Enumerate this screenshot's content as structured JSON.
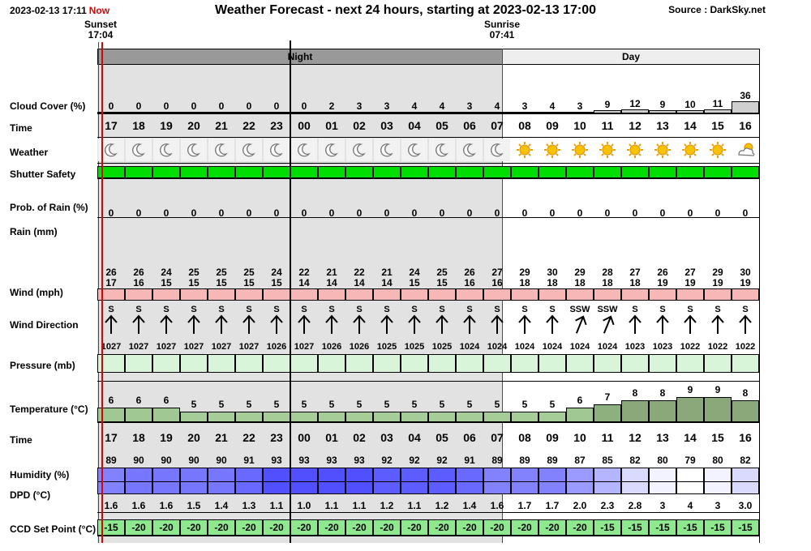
{
  "header": {
    "timestamp": "2023-02-13 17:11",
    "now_label": "Now",
    "title": "Weather Forecast - next 24 hours, starting at 2023-02-13 17:00",
    "source": "Source : DarkSky.net"
  },
  "sunset": {
    "label": "Sunset",
    "time": "17:04"
  },
  "sunrise": {
    "label": "Sunrise",
    "time": "07:41"
  },
  "periods": {
    "night": "Night",
    "day": "Day"
  },
  "labels": {
    "cloud_cover": "Cloud Cover (%)",
    "time": "Time",
    "weather": "Weather",
    "shutter_safety": "Shutter Safety",
    "prob_rain": "Prob. of Rain (%)",
    "rain": "Rain (mm)",
    "wind": "Wind (mph)",
    "wind_direction": "Wind Direction",
    "pressure": "Pressure (mb)",
    "temperature": "Temperature (°C)",
    "time2": "Time",
    "humidity": "Humidity (%)",
    "dpd": "DPD (°C)",
    "ccd": "CCD Set Point (°C)"
  },
  "hours": [
    "17",
    "18",
    "19",
    "20",
    "21",
    "22",
    "23",
    "00",
    "01",
    "02",
    "03",
    "04",
    "05",
    "06",
    "07",
    "08",
    "09",
    "10",
    "11",
    "12",
    "13",
    "14",
    "15",
    "16"
  ],
  "cloud_cover": [
    "0",
    "0",
    "0",
    "0",
    "0",
    "0",
    "0",
    "0",
    "2",
    "3",
    "3",
    "4",
    "4",
    "3",
    "4",
    "3",
    "4",
    "3",
    "9",
    "12",
    "9",
    "10",
    "11",
    "36"
  ],
  "weather_icons": [
    "moon-icon",
    "moon-icon",
    "moon-icon",
    "moon-icon",
    "moon-icon",
    "moon-icon",
    "moon-icon",
    "moon-icon",
    "moon-icon",
    "moon-icon",
    "moon-icon",
    "moon-icon",
    "moon-icon",
    "moon-icon",
    "moon-icon",
    "sun-icon",
    "sun-icon",
    "sun-icon",
    "sun-icon",
    "sun-icon",
    "sun-icon",
    "sun-icon",
    "sun-icon",
    "partly-cloudy-icon"
  ],
  "shutter_safety_color": "#00dd00",
  "prob_rain": [
    "0",
    "0",
    "0",
    "0",
    "0",
    "0",
    "0",
    "0",
    "0",
    "0",
    "0",
    "0",
    "0",
    "0",
    "0",
    "0",
    "0",
    "0",
    "0",
    "0",
    "0",
    "0",
    "0",
    "0"
  ],
  "wind_gust": [
    "26",
    "26",
    "24",
    "25",
    "25",
    "25",
    "24",
    "22",
    "21",
    "22",
    "21",
    "24",
    "25",
    "26",
    "27",
    "29",
    "30",
    "29",
    "28",
    "27",
    "26",
    "27",
    "29",
    "30"
  ],
  "wind_speed": [
    "17",
    "16",
    "15",
    "15",
    "15",
    "15",
    "15",
    "14",
    "14",
    "14",
    "14",
    "15",
    "15",
    "16",
    "16",
    "18",
    "18",
    "18",
    "18",
    "18",
    "19",
    "19",
    "19",
    "19"
  ],
  "wind_dir": [
    "S",
    "S",
    "S",
    "S",
    "S",
    "S",
    "S",
    "S",
    "S",
    "S",
    "S",
    "S",
    "S",
    "S",
    "S",
    "S",
    "S",
    "SSW",
    "SSW",
    "S",
    "S",
    "S",
    "S",
    "S"
  ],
  "wind_arrow_deg": [
    0,
    0,
    0,
    0,
    0,
    0,
    0,
    0,
    0,
    0,
    0,
    0,
    0,
    0,
    0,
    0,
    0,
    22,
    22,
    0,
    0,
    0,
    0,
    0
  ],
  "pressure": [
    "1027",
    "1027",
    "1027",
    "1027",
    "1027",
    "1027",
    "1026",
    "1027",
    "1026",
    "1026",
    "1025",
    "1025",
    "1025",
    "1024",
    "1024",
    "1024",
    "1024",
    "1024",
    "1024",
    "1023",
    "1023",
    "1022",
    "1022",
    "1022"
  ],
  "temperature": [
    "6",
    "6",
    "6",
    "5",
    "5",
    "5",
    "5",
    "5",
    "5",
    "5",
    "5",
    "5",
    "5",
    "5",
    "5",
    "5",
    "5",
    "6",
    "7",
    "8",
    "8",
    "9",
    "9",
    "8"
  ],
  "humidity": [
    "89",
    "90",
    "90",
    "90",
    "90",
    "91",
    "93",
    "93",
    "93",
    "93",
    "92",
    "92",
    "92",
    "91",
    "89",
    "89",
    "89",
    "87",
    "85",
    "82",
    "80",
    "79",
    "80",
    "82"
  ],
  "dpd": [
    "1.6",
    "1.6",
    "1.6",
    "1.5",
    "1.4",
    "1.3",
    "1.1",
    "1.0",
    "1.1",
    "1.1",
    "1.2",
    "1.1",
    "1.2",
    "1.4",
    "1.6",
    "1.7",
    "1.7",
    "2.0",
    "2.3",
    "2.8",
    "3",
    "4",
    "3",
    "3.0"
  ],
  "ccd": [
    "-15",
    "-20",
    "-20",
    "-20",
    "-20",
    "-20",
    "-20",
    "-20",
    "-20",
    "-20",
    "-20",
    "-20",
    "-20",
    "-20",
    "-20",
    "-20",
    "-20",
    "-20",
    "-15",
    "-15",
    "-15",
    "-15",
    "-15",
    "-15"
  ],
  "colors": {
    "now_line": "#e00000",
    "midnight_line": "#000000",
    "sun_line": "#008000",
    "night_bg": "#e2e2e2",
    "banner_night": "#999999",
    "banner_day": "#eeeeee",
    "shutter_safe": "#00dd00",
    "wind_bar": "#f7b7b7",
    "pressure_bar": "#d9f5d9",
    "ccd_bar": "#8ee88e"
  }
}
